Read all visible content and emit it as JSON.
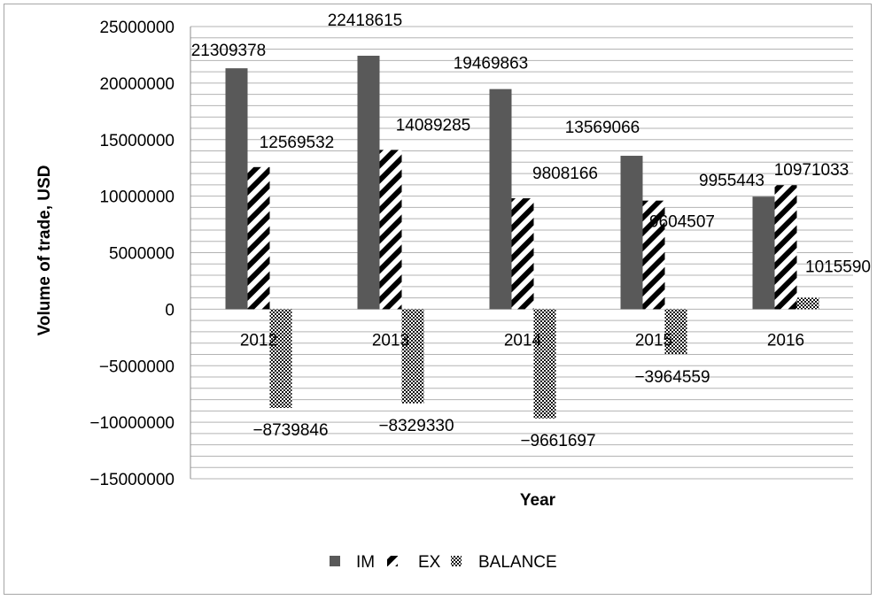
{
  "chart_data": {
    "type": "bar",
    "categories": [
      "2012",
      "2013",
      "2014",
      "2015",
      "2016"
    ],
    "series": [
      {
        "name": "IM",
        "values": [
          21309378,
          22418615,
          19469863,
          13569066,
          9955443
        ],
        "color": "#595959",
        "pattern": "solid"
      },
      {
        "name": "EX",
        "values": [
          12569532,
          14089285,
          9808166,
          9604507,
          10971033
        ],
        "color": "#000000",
        "pattern": "diagonal-stripes"
      },
      {
        "name": "BALANCE",
        "values": [
          -8739846,
          -8329330,
          -9661697,
          -3964559,
          1015590
        ],
        "color": "#000000",
        "pattern": "checker"
      }
    ],
    "data_labels": {
      "IM": [
        "21309378",
        "22418615",
        "19469863",
        "13569066",
        "9955443"
      ],
      "EX": [
        "12569532",
        "14089285",
        "9808166",
        "9604507",
        "10971033"
      ],
      "BALANCE": [
        "−8739846",
        "−8329330",
        "−9661697",
        "−3964559",
        "1015590"
      ]
    },
    "xlabel": "Year",
    "ylabel": "Volume of trade, USD",
    "ylim": [
      -15000000,
      25000000
    ],
    "yticks": [
      25000000,
      20000000,
      15000000,
      10000000,
      5000000,
      0,
      -5000000,
      -10000000,
      -15000000
    ],
    "ytick_labels": [
      "25000000",
      "20000000",
      "15000000",
      "10000000",
      "5000000",
      "0",
      "−5000000",
      "−10000000",
      "−15000000"
    ],
    "grid": true,
    "minor_grid_step": 1000000,
    "legend_position": "bottom"
  }
}
